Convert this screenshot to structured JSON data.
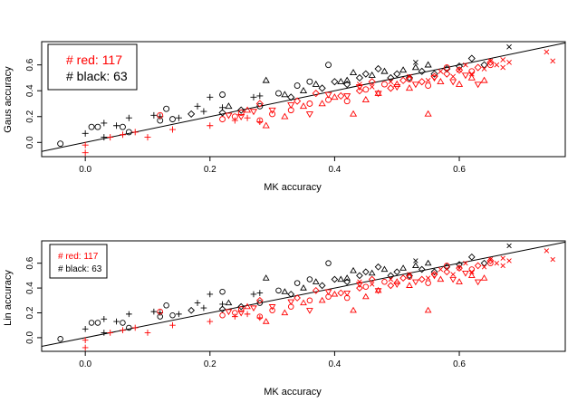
{
  "colors": {
    "red": "#ff0000",
    "black": "#000000"
  },
  "chart_data": [
    {
      "type": "scatter",
      "title": "",
      "xlabel": "MK accuracy",
      "ylabel": "Gaus accuracy",
      "xlim": [
        -0.07,
        0.77
      ],
      "ylim": [
        -0.11,
        0.78
      ],
      "xticks": [
        "0.0",
        "0.2",
        "0.4",
        "0.6"
      ],
      "yticks": [
        "0.0",
        "0.2",
        "0.4",
        "0.6"
      ],
      "reference_line": "y = x",
      "legend": {
        "position": "top-left",
        "entries": [
          {
            "text": "# red: 117",
            "color": "red"
          },
          {
            "text": "# black: 63",
            "color": "black"
          }
        ]
      },
      "series": [
        {
          "color": "black",
          "points": [
            {
              "x": -0.04,
              "y": -0.01,
              "s": "circle"
            },
            {
              "x": 0.01,
              "y": 0.12,
              "s": "circle"
            },
            {
              "x": 0.02,
              "y": 0.12,
              "s": "circle"
            },
            {
              "x": 0.06,
              "y": 0.12,
              "s": "circle"
            },
            {
              "x": 0.07,
              "y": 0.08,
              "s": "circle"
            },
            {
              "x": 0.12,
              "y": 0.17,
              "s": "circle"
            },
            {
              "x": 0.13,
              "y": 0.26,
              "s": "circle"
            },
            {
              "x": 0.14,
              "y": 0.18,
              "s": "circle"
            },
            {
              "x": 0.22,
              "y": 0.37,
              "s": "circle"
            },
            {
              "x": 0.28,
              "y": 0.28,
              "s": "circle"
            },
            {
              "x": 0.31,
              "y": 0.38,
              "s": "circle"
            },
            {
              "x": 0.34,
              "y": 0.44,
              "s": "circle"
            },
            {
              "x": 0.36,
              "y": 0.47,
              "s": "circle"
            },
            {
              "x": 0.39,
              "y": 0.6,
              "s": "circle"
            },
            {
              "x": 0.0,
              "y": 0.07,
              "s": "plus"
            },
            {
              "x": 0.03,
              "y": 0.15,
              "s": "plus"
            },
            {
              "x": 0.03,
              "y": 0.04,
              "s": "plus"
            },
            {
              "x": 0.05,
              "y": 0.13,
              "s": "plus"
            },
            {
              "x": 0.07,
              "y": 0.19,
              "s": "plus"
            },
            {
              "x": 0.11,
              "y": 0.21,
              "s": "plus"
            },
            {
              "x": 0.12,
              "y": 0.2,
              "s": "plus"
            },
            {
              "x": 0.15,
              "y": 0.19,
              "s": "plus"
            },
            {
              "x": 0.18,
              "y": 0.28,
              "s": "plus"
            },
            {
              "x": 0.19,
              "y": 0.24,
              "s": "plus"
            },
            {
              "x": 0.2,
              "y": 0.35,
              "s": "plus"
            },
            {
              "x": 0.22,
              "y": 0.27,
              "s": "plus"
            },
            {
              "x": 0.27,
              "y": 0.35,
              "s": "plus"
            },
            {
              "x": 0.28,
              "y": 0.36,
              "s": "plus"
            },
            {
              "x": 0.17,
              "y": 0.22,
              "s": "diamond"
            },
            {
              "x": 0.22,
              "y": 0.23,
              "s": "diamond"
            },
            {
              "x": 0.25,
              "y": 0.25,
              "s": "diamond"
            },
            {
              "x": 0.33,
              "y": 0.35,
              "s": "diamond"
            },
            {
              "x": 0.38,
              "y": 0.42,
              "s": "diamond"
            },
            {
              "x": 0.4,
              "y": 0.47,
              "s": "diamond"
            },
            {
              "x": 0.42,
              "y": 0.45,
              "s": "diamond"
            },
            {
              "x": 0.44,
              "y": 0.5,
              "s": "diamond"
            },
            {
              "x": 0.45,
              "y": 0.53,
              "s": "diamond"
            },
            {
              "x": 0.47,
              "y": 0.57,
              "s": "diamond"
            },
            {
              "x": 0.49,
              "y": 0.5,
              "s": "diamond"
            },
            {
              "x": 0.5,
              "y": 0.53,
              "s": "diamond"
            },
            {
              "x": 0.52,
              "y": 0.5,
              "s": "diamond"
            },
            {
              "x": 0.54,
              "y": 0.55,
              "s": "diamond"
            },
            {
              "x": 0.56,
              "y": 0.53,
              "s": "diamond"
            },
            {
              "x": 0.58,
              "y": 0.57,
              "s": "diamond"
            },
            {
              "x": 0.6,
              "y": 0.59,
              "s": "diamond"
            },
            {
              "x": 0.62,
              "y": 0.65,
              "s": "diamond"
            },
            {
              "x": 0.64,
              "y": 0.6,
              "s": "diamond"
            },
            {
              "x": 0.23,
              "y": 0.28,
              "s": "triangle"
            },
            {
              "x": 0.29,
              "y": 0.48,
              "s": "triangle"
            },
            {
              "x": 0.32,
              "y": 0.37,
              "s": "triangle"
            },
            {
              "x": 0.35,
              "y": 0.4,
              "s": "triangle"
            },
            {
              "x": 0.37,
              "y": 0.45,
              "s": "triangle"
            },
            {
              "x": 0.41,
              "y": 0.47,
              "s": "triangle"
            },
            {
              "x": 0.42,
              "y": 0.48,
              "s": "triangle"
            },
            {
              "x": 0.43,
              "y": 0.54,
              "s": "triangle"
            },
            {
              "x": 0.46,
              "y": 0.52,
              "s": "triangle"
            },
            {
              "x": 0.48,
              "y": 0.55,
              "s": "triangle"
            },
            {
              "x": 0.51,
              "y": 0.56,
              "s": "triangle"
            },
            {
              "x": 0.53,
              "y": 0.58,
              "s": "triangle"
            },
            {
              "x": 0.55,
              "y": 0.6,
              "s": "triangle"
            },
            {
              "x": 0.53,
              "y": 0.62,
              "s": "x"
            },
            {
              "x": 0.68,
              "y": 0.74,
              "s": "x"
            }
          ]
        },
        {
          "color": "red",
          "points": [
            {
              "x": 0.12,
              "y": 0.21,
              "s": "circle"
            },
            {
              "x": 0.22,
              "y": 0.18,
              "s": "circle"
            },
            {
              "x": 0.24,
              "y": 0.2,
              "s": "circle"
            },
            {
              "x": 0.25,
              "y": 0.23,
              "s": "circle"
            },
            {
              "x": 0.28,
              "y": 0.17,
              "s": "circle"
            },
            {
              "x": 0.3,
              "y": 0.22,
              "s": "circle"
            },
            {
              "x": 0.33,
              "y": 0.25,
              "s": "circle"
            },
            {
              "x": 0.36,
              "y": 0.3,
              "s": "circle"
            },
            {
              "x": 0.39,
              "y": 0.33,
              "s": "circle"
            },
            {
              "x": 0.42,
              "y": 0.32,
              "s": "circle"
            },
            {
              "x": 0.45,
              "y": 0.41,
              "s": "circle"
            },
            {
              "x": 0.48,
              "y": 0.45,
              "s": "circle"
            },
            {
              "x": 0.52,
              "y": 0.49,
              "s": "circle"
            },
            {
              "x": 0.55,
              "y": 0.44,
              "s": "circle"
            },
            {
              "x": 0.58,
              "y": 0.58,
              "s": "circle"
            },
            {
              "x": 0.62,
              "y": 0.55,
              "s": "circle"
            },
            {
              "x": 0.65,
              "y": 0.6,
              "s": "circle"
            },
            {
              "x": 0.0,
              "y": -0.08,
              "s": "plus"
            },
            {
              "x": 0.0,
              "y": -0.02,
              "s": "plus"
            },
            {
              "x": 0.04,
              "y": 0.04,
              "s": "plus"
            },
            {
              "x": 0.06,
              "y": 0.06,
              "s": "plus"
            },
            {
              "x": 0.08,
              "y": 0.08,
              "s": "plus"
            },
            {
              "x": 0.1,
              "y": 0.04,
              "s": "plus"
            },
            {
              "x": 0.14,
              "y": 0.1,
              "s": "plus"
            },
            {
              "x": 0.2,
              "y": 0.13,
              "s": "plus"
            },
            {
              "x": 0.24,
              "y": 0.17,
              "s": "plus"
            },
            {
              "x": 0.26,
              "y": 0.19,
              "s": "plus"
            },
            {
              "x": 0.28,
              "y": 0.16,
              "s": "plus"
            },
            {
              "x": 0.26,
              "y": 0.25,
              "s": "triangle"
            },
            {
              "x": 0.29,
              "y": 0.13,
              "s": "triangle"
            },
            {
              "x": 0.32,
              "y": 0.2,
              "s": "triangle"
            },
            {
              "x": 0.35,
              "y": 0.28,
              "s": "triangle"
            },
            {
              "x": 0.38,
              "y": 0.3,
              "s": "triangle"
            },
            {
              "x": 0.4,
              "y": 0.35,
              "s": "triangle"
            },
            {
              "x": 0.43,
              "y": 0.22,
              "s": "triangle"
            },
            {
              "x": 0.45,
              "y": 0.33,
              "s": "triangle"
            },
            {
              "x": 0.47,
              "y": 0.38,
              "s": "triangle"
            },
            {
              "x": 0.5,
              "y": 0.45,
              "s": "triangle"
            },
            {
              "x": 0.52,
              "y": 0.42,
              "s": "triangle"
            },
            {
              "x": 0.55,
              "y": 0.22,
              "s": "triangle"
            },
            {
              "x": 0.57,
              "y": 0.47,
              "s": "triangle"
            },
            {
              "x": 0.6,
              "y": 0.45,
              "s": "triangle"
            },
            {
              "x": 0.62,
              "y": 0.5,
              "s": "triangle"
            },
            {
              "x": 0.64,
              "y": 0.48,
              "s": "triangle"
            },
            {
              "x": 0.23,
              "y": 0.21,
              "s": "triangledown"
            },
            {
              "x": 0.25,
              "y": 0.2,
              "s": "triangledown"
            },
            {
              "x": 0.27,
              "y": 0.24,
              "s": "triangledown"
            },
            {
              "x": 0.3,
              "y": 0.25,
              "s": "triangledown"
            },
            {
              "x": 0.33,
              "y": 0.29,
              "s": "triangledown"
            },
            {
              "x": 0.36,
              "y": 0.22,
              "s": "triangledown"
            },
            {
              "x": 0.39,
              "y": 0.37,
              "s": "triangledown"
            },
            {
              "x": 0.42,
              "y": 0.36,
              "s": "triangledown"
            },
            {
              "x": 0.44,
              "y": 0.43,
              "s": "triangledown"
            },
            {
              "x": 0.47,
              "y": 0.38,
              "s": "triangledown"
            },
            {
              "x": 0.5,
              "y": 0.43,
              "s": "triangledown"
            },
            {
              "x": 0.53,
              "y": 0.45,
              "s": "triangledown"
            },
            {
              "x": 0.56,
              "y": 0.5,
              "s": "triangledown"
            },
            {
              "x": 0.59,
              "y": 0.47,
              "s": "triangledown"
            },
            {
              "x": 0.61,
              "y": 0.52,
              "s": "triangledown"
            },
            {
              "x": 0.63,
              "y": 0.45,
              "s": "triangledown"
            },
            {
              "x": 0.28,
              "y": 0.3,
              "s": "diamond"
            },
            {
              "x": 0.34,
              "y": 0.32,
              "s": "diamond"
            },
            {
              "x": 0.37,
              "y": 0.38,
              "s": "diamond"
            },
            {
              "x": 0.41,
              "y": 0.36,
              "s": "diamond"
            },
            {
              "x": 0.44,
              "y": 0.4,
              "s": "diamond"
            },
            {
              "x": 0.46,
              "y": 0.47,
              "s": "diamond"
            },
            {
              "x": 0.49,
              "y": 0.42,
              "s": "diamond"
            },
            {
              "x": 0.51,
              "y": 0.48,
              "s": "diamond"
            },
            {
              "x": 0.54,
              "y": 0.47,
              "s": "diamond"
            },
            {
              "x": 0.56,
              "y": 0.51,
              "s": "diamond"
            },
            {
              "x": 0.58,
              "y": 0.53,
              "s": "diamond"
            },
            {
              "x": 0.6,
              "y": 0.56,
              "s": "diamond"
            },
            {
              "x": 0.63,
              "y": 0.58,
              "s": "diamond"
            },
            {
              "x": 0.65,
              "y": 0.62,
              "s": "diamond"
            },
            {
              "x": 0.44,
              "y": 0.45,
              "s": "x"
            },
            {
              "x": 0.46,
              "y": 0.43,
              "s": "x"
            },
            {
              "x": 0.49,
              "y": 0.47,
              "s": "x"
            },
            {
              "x": 0.52,
              "y": 0.51,
              "s": "x"
            },
            {
              "x": 0.55,
              "y": 0.48,
              "s": "x"
            },
            {
              "x": 0.57,
              "y": 0.55,
              "s": "x"
            },
            {
              "x": 0.59,
              "y": 0.51,
              "s": "x"
            },
            {
              "x": 0.6,
              "y": 0.56,
              "s": "x"
            },
            {
              "x": 0.61,
              "y": 0.6,
              "s": "x"
            },
            {
              "x": 0.62,
              "y": 0.53,
              "s": "x"
            },
            {
              "x": 0.64,
              "y": 0.57,
              "s": "x"
            },
            {
              "x": 0.65,
              "y": 0.63,
              "s": "x"
            },
            {
              "x": 0.66,
              "y": 0.6,
              "s": "x"
            },
            {
              "x": 0.67,
              "y": 0.64,
              "s": "x"
            },
            {
              "x": 0.67,
              "y": 0.58,
              "s": "x"
            },
            {
              "x": 0.68,
              "y": 0.62,
              "s": "x"
            },
            {
              "x": 0.74,
              "y": 0.7,
              "s": "x"
            },
            {
              "x": 0.75,
              "y": 0.63,
              "s": "x"
            }
          ]
        }
      ]
    },
    {
      "type": "scatter",
      "title": "",
      "xlabel": "MK accuracy",
      "ylabel": "Lin accuracy",
      "xlim": [
        -0.07,
        0.77
      ],
      "ylim": [
        -0.11,
        0.78
      ],
      "xticks": [
        "0.0",
        "0.2",
        "0.4",
        "0.6"
      ],
      "yticks": [
        "0.0",
        "0.2",
        "0.4",
        "0.6"
      ],
      "reference_line": "y = x",
      "legend": {
        "position": "top-left",
        "entries": [
          {
            "text": "# red: 117",
            "color": "red"
          },
          {
            "text": "# black: 63",
            "color": "black"
          }
        ]
      },
      "series": "same_as_first_panel"
    }
  ]
}
